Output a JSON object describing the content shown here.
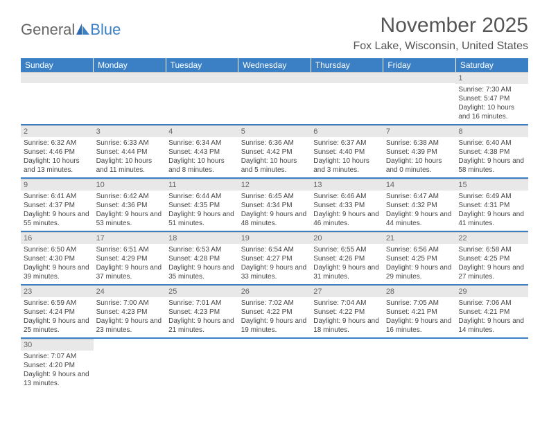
{
  "logo": {
    "text1": "General",
    "text2": "Blue"
  },
  "title": "November 2025",
  "location": "Fox Lake, Wisconsin, United States",
  "theme": {
    "header_bg": "#3b7fc4",
    "header_text": "#ffffff",
    "daynum_bg": "#e8e8e8",
    "row_border": "#3b7fc4",
    "body_text": "#444444",
    "title_color": "#555555"
  },
  "day_headers": [
    "Sunday",
    "Monday",
    "Tuesday",
    "Wednesday",
    "Thursday",
    "Friday",
    "Saturday"
  ],
  "weeks": [
    [
      null,
      null,
      null,
      null,
      null,
      null,
      {
        "n": "1",
        "sr": "7:30 AM",
        "ss": "5:47 PM",
        "dl": "10 hours and 16 minutes."
      }
    ],
    [
      {
        "n": "2",
        "sr": "6:32 AM",
        "ss": "4:46 PM",
        "dl": "10 hours and 13 minutes."
      },
      {
        "n": "3",
        "sr": "6:33 AM",
        "ss": "4:44 PM",
        "dl": "10 hours and 11 minutes."
      },
      {
        "n": "4",
        "sr": "6:34 AM",
        "ss": "4:43 PM",
        "dl": "10 hours and 8 minutes."
      },
      {
        "n": "5",
        "sr": "6:36 AM",
        "ss": "4:42 PM",
        "dl": "10 hours and 5 minutes."
      },
      {
        "n": "6",
        "sr": "6:37 AM",
        "ss": "4:40 PM",
        "dl": "10 hours and 3 minutes."
      },
      {
        "n": "7",
        "sr": "6:38 AM",
        "ss": "4:39 PM",
        "dl": "10 hours and 0 minutes."
      },
      {
        "n": "8",
        "sr": "6:40 AM",
        "ss": "4:38 PM",
        "dl": "9 hours and 58 minutes."
      }
    ],
    [
      {
        "n": "9",
        "sr": "6:41 AM",
        "ss": "4:37 PM",
        "dl": "9 hours and 55 minutes."
      },
      {
        "n": "10",
        "sr": "6:42 AM",
        "ss": "4:36 PM",
        "dl": "9 hours and 53 minutes."
      },
      {
        "n": "11",
        "sr": "6:44 AM",
        "ss": "4:35 PM",
        "dl": "9 hours and 51 minutes."
      },
      {
        "n": "12",
        "sr": "6:45 AM",
        "ss": "4:34 PM",
        "dl": "9 hours and 48 minutes."
      },
      {
        "n": "13",
        "sr": "6:46 AM",
        "ss": "4:33 PM",
        "dl": "9 hours and 46 minutes."
      },
      {
        "n": "14",
        "sr": "6:47 AM",
        "ss": "4:32 PM",
        "dl": "9 hours and 44 minutes."
      },
      {
        "n": "15",
        "sr": "6:49 AM",
        "ss": "4:31 PM",
        "dl": "9 hours and 41 minutes."
      }
    ],
    [
      {
        "n": "16",
        "sr": "6:50 AM",
        "ss": "4:30 PM",
        "dl": "9 hours and 39 minutes."
      },
      {
        "n": "17",
        "sr": "6:51 AM",
        "ss": "4:29 PM",
        "dl": "9 hours and 37 minutes."
      },
      {
        "n": "18",
        "sr": "6:53 AM",
        "ss": "4:28 PM",
        "dl": "9 hours and 35 minutes."
      },
      {
        "n": "19",
        "sr": "6:54 AM",
        "ss": "4:27 PM",
        "dl": "9 hours and 33 minutes."
      },
      {
        "n": "20",
        "sr": "6:55 AM",
        "ss": "4:26 PM",
        "dl": "9 hours and 31 minutes."
      },
      {
        "n": "21",
        "sr": "6:56 AM",
        "ss": "4:25 PM",
        "dl": "9 hours and 29 minutes."
      },
      {
        "n": "22",
        "sr": "6:58 AM",
        "ss": "4:25 PM",
        "dl": "9 hours and 27 minutes."
      }
    ],
    [
      {
        "n": "23",
        "sr": "6:59 AM",
        "ss": "4:24 PM",
        "dl": "9 hours and 25 minutes."
      },
      {
        "n": "24",
        "sr": "7:00 AM",
        "ss": "4:23 PM",
        "dl": "9 hours and 23 minutes."
      },
      {
        "n": "25",
        "sr": "7:01 AM",
        "ss": "4:23 PM",
        "dl": "9 hours and 21 minutes."
      },
      {
        "n": "26",
        "sr": "7:02 AM",
        "ss": "4:22 PM",
        "dl": "9 hours and 19 minutes."
      },
      {
        "n": "27",
        "sr": "7:04 AM",
        "ss": "4:22 PM",
        "dl": "9 hours and 18 minutes."
      },
      {
        "n": "28",
        "sr": "7:05 AM",
        "ss": "4:21 PM",
        "dl": "9 hours and 16 minutes."
      },
      {
        "n": "29",
        "sr": "7:06 AM",
        "ss": "4:21 PM",
        "dl": "9 hours and 14 minutes."
      }
    ],
    [
      {
        "n": "30",
        "sr": "7:07 AM",
        "ss": "4:20 PM",
        "dl": "9 hours and 13 minutes."
      },
      null,
      null,
      null,
      null,
      null,
      null
    ]
  ],
  "labels": {
    "sunrise": "Sunrise:",
    "sunset": "Sunset:",
    "daylight": "Daylight:"
  }
}
